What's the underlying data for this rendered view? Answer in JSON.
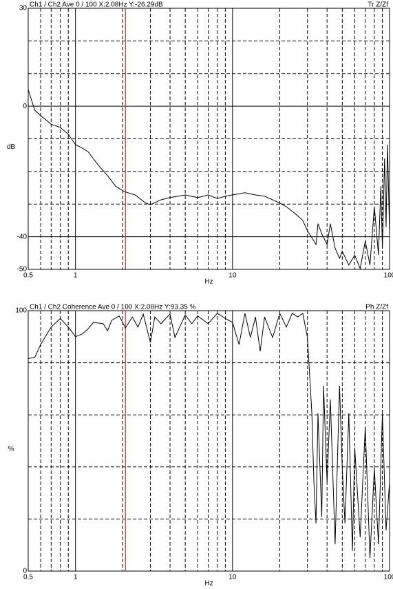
{
  "chart_data": [
    {
      "type": "line",
      "title": "Ch1 / Ch2  Ave 0 / 100  X:2.08Hz  Y:-26.29dB",
      "title_right": "Tr Z/Zf",
      "xlabel": "Hz",
      "ylabel": "dB",
      "xscale": "log",
      "xlim": [
        0.5,
        100
      ],
      "xticks": [
        0.5,
        1,
        10,
        100
      ],
      "xgrid": [
        0.6,
        0.7,
        0.8,
        0.9,
        2,
        3,
        4,
        5,
        6,
        7,
        8,
        9,
        20,
        30,
        40,
        50,
        60,
        70,
        80,
        90
      ],
      "ylim": [
        -50,
        30
      ],
      "yticks": [
        30,
        0,
        -40,
        -50
      ],
      "ygrid": [
        20,
        10,
        -10,
        -20,
        -30
      ],
      "cursor": {
        "x": 2.08,
        "color": "#e03020"
      },
      "x": [
        0.5,
        0.55,
        0.6,
        0.7,
        0.8,
        0.9,
        1.0,
        1.1,
        1.2,
        1.4,
        1.6,
        1.8,
        2.0,
        2.08,
        2.4,
        2.8,
        3.0,
        3.5,
        4,
        5,
        6,
        7,
        8,
        9,
        10,
        12,
        14,
        16,
        18,
        20,
        22,
        25,
        28,
        30,
        32,
        34,
        35,
        37,
        40,
        42,
        45,
        48,
        50,
        55,
        60,
        65,
        70,
        75,
        80,
        85,
        88,
        90,
        93,
        95,
        97,
        100
      ],
      "series": [
        {
          "color": "#000000",
          "values": [
            5.1,
            -1.2,
            -2.9,
            -5.5,
            -6.5,
            -8.6,
            -11.8,
            -12.8,
            -13.9,
            -18.1,
            -21.3,
            -24.5,
            -25.9,
            -26.3,
            -27.2,
            -29.7,
            -30.2,
            -28.7,
            -28,
            -27.2,
            -28,
            -27.2,
            -28.3,
            -27.6,
            -27.2,
            -26.5,
            -27.2,
            -27.6,
            -28.7,
            -29.7,
            -30.8,
            -32.9,
            -35,
            -38.2,
            -40.3,
            -42.4,
            -36,
            -39.1,
            -42.4,
            -36,
            -43.5,
            -46.6,
            -44.5,
            -48.7,
            -45.6,
            -49.8,
            -41.3,
            -48.7,
            -30.8,
            -45.6,
            -24.5,
            -43.5,
            -16,
            -37.1,
            -11.8,
            -39.1
          ]
        }
      ]
    },
    {
      "type": "line",
      "title": "Ch1 / Ch2  Coherence Ave 0 / 100  X:2.08Hz  Y:93.35 %",
      "title_right": "Ph Z/Zf",
      "xlabel": "Hz",
      "ylabel": "%",
      "xscale": "log",
      "xlim": [
        0.5,
        100
      ],
      "xticks": [
        0.5,
        1,
        10,
        100
      ],
      "xgrid": [
        0.6,
        0.7,
        0.8,
        0.9,
        2,
        3,
        4,
        5,
        6,
        7,
        8,
        9,
        20,
        30,
        40,
        50,
        60,
        70,
        80,
        90
      ],
      "ylim": [
        0,
        100
      ],
      "yticks": [
        100,
        0
      ],
      "ygrid": [
        80,
        60,
        40,
        20
      ],
      "cursor": {
        "x": 2.08,
        "color": "#e03020"
      },
      "x": [
        0.5,
        0.55,
        0.6,
        0.7,
        0.8,
        0.9,
        1.0,
        1.1,
        1.2,
        1.3,
        1.5,
        1.6,
        1.7,
        1.9,
        2.08,
        2.3,
        2.5,
        2.7,
        3.0,
        3.2,
        3.5,
        4,
        4.3,
        5,
        5.5,
        6,
        7,
        8,
        9,
        10,
        11,
        12,
        13,
        14,
        15,
        16,
        18,
        20,
        22,
        24,
        26,
        28,
        30,
        32,
        33,
        34,
        35,
        37,
        38,
        40,
        42,
        45,
        48,
        50,
        52,
        55,
        58,
        60,
        65,
        70,
        75,
        80,
        85,
        90,
        95,
        100
      ],
      "series": [
        {
          "color": "#000000",
          "values": [
            81.7,
            82,
            87,
            93.7,
            97,
            93.7,
            90,
            91,
            92.9,
            95.5,
            95,
            92.3,
            96.3,
            98,
            93.35,
            97.6,
            93.7,
            98.7,
            87.8,
            97.6,
            95,
            98.7,
            89.7,
            98.4,
            95,
            98,
            95,
            99,
            97,
            95.5,
            87,
            99,
            89.7,
            97.6,
            84.4,
            97.6,
            89.7,
            99,
            93.7,
            99,
            97.6,
            99,
            89.7,
            60.6,
            34.1,
            18.3,
            60.6,
            20.9,
            71.2,
            34.1,
            65.9,
            10.3,
            71.2,
            39.4,
            18.3,
            60.6,
            7.7,
            47.4,
            13,
            55.3,
            5,
            39.4,
            10.3,
            60.6,
            15.6,
            34.1
          ]
        }
      ]
    }
  ]
}
